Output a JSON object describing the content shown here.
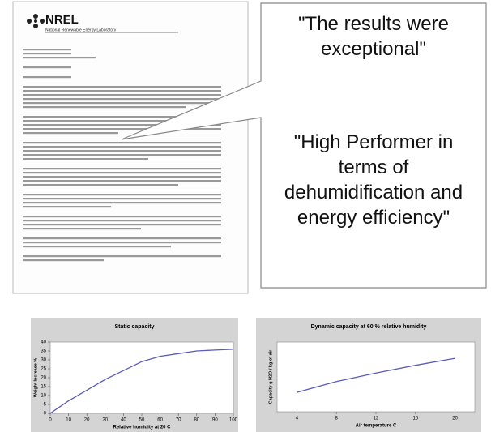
{
  "letter": {
    "logo": "NREL",
    "organization": "National Renewable Energy Laboratory"
  },
  "callout": {
    "quotes": [
      "\"The results were exceptional\"",
      "\"High Performer in terms of dehumidification and energy efficiency\""
    ]
  },
  "chart_data": [
    {
      "type": "line",
      "title": "Static capacity",
      "x_label": "Relative humidity at 20 C",
      "y_label": "Weight Increase %",
      "x": [
        0,
        10,
        20,
        30,
        40,
        50,
        60,
        70,
        80,
        90,
        100
      ],
      "values": [
        0,
        7,
        13,
        19,
        24,
        29,
        32,
        33.5,
        35,
        35.5,
        36
      ],
      "color": "#5b5bb8",
      "xlim": [
        0,
        100
      ],
      "ylim": [
        0,
        40
      ],
      "xticks": [
        0,
        10,
        20,
        30,
        40,
        50,
        60,
        70,
        80,
        90,
        100
      ],
      "yticks": [
        0,
        5,
        10,
        15,
        20,
        25,
        30,
        35,
        40
      ]
    },
    {
      "type": "line",
      "title": "Dynamic capacity at 60 % relative humidity",
      "x_label": "Air temperature C",
      "y_label": "Capacity g H2O / kg of air",
      "x": [
        4,
        8,
        12,
        16,
        20
      ],
      "values": [
        2.5,
        3.9,
        5.0,
        6.0,
        6.9
      ],
      "color": "#5b5bb8",
      "xlim": [
        2,
        22
      ],
      "ylim": [
        0,
        9
      ],
      "xticks": [
        4,
        8,
        12,
        16,
        20
      ]
    }
  ]
}
